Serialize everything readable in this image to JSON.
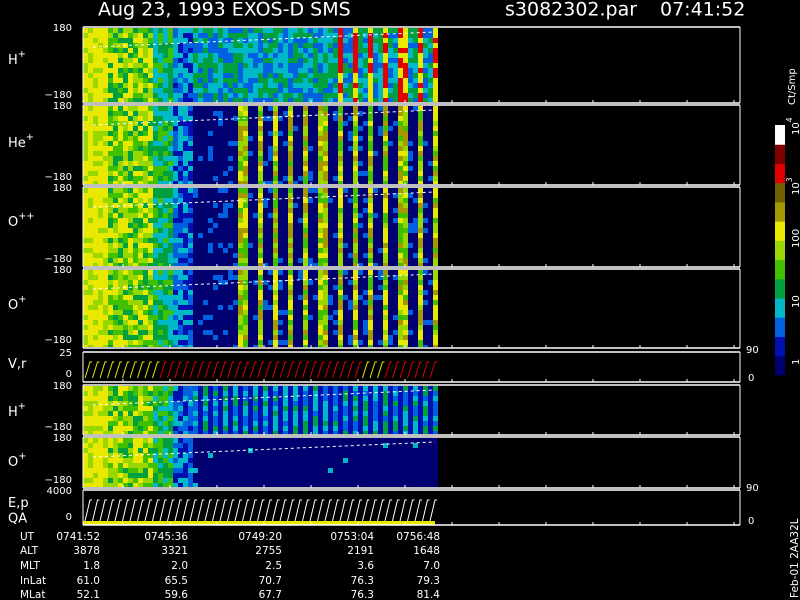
{
  "header": {
    "title": "Aug 23, 1993   EXOS-D SMS",
    "file": "s3082302.par",
    "time": "07:41:52"
  },
  "panels": [
    {
      "label": {
        "base": "H",
        "sup": "+"
      },
      "top": "180",
      "bottom": "−180"
    },
    {
      "label": {
        "base": "He",
        "sup": "+"
      },
      "top": "180",
      "bottom": "−180"
    },
    {
      "label": {
        "base": "O",
        "sup": "++"
      },
      "top": "180",
      "bottom": "−180"
    },
    {
      "label": {
        "base": "O",
        "sup": "+"
      },
      "top": "180",
      "bottom": "−180"
    },
    {
      "label": {
        "base": "V,r"
      },
      "top": "25",
      "bottom": "0",
      "right_top": "90",
      "right_bottom": "0"
    },
    {
      "label": {
        "base": "H",
        "sup": "+"
      },
      "top": "180",
      "bottom": "−180"
    },
    {
      "label": {
        "base": "O",
        "sup": "+"
      },
      "top": "180",
      "bottom": "−180"
    },
    {
      "label": {
        "base": "E,p",
        "second": "QA"
      },
      "top": "4000",
      "bottom": "0",
      "right_top": "90",
      "right_bottom": "0"
    }
  ],
  "colorbar": {
    "unit": "Ct/Smp",
    "labels": [
      {
        "base": "10",
        "sup": "4"
      },
      {
        "base": "10",
        "sup": "3"
      },
      {
        "base": "100"
      },
      {
        "base": "10"
      },
      {
        "base": "1"
      }
    ]
  },
  "table": {
    "rows": [
      [
        "UT",
        "0741:52",
        "0745:36",
        "0749:20",
        "0753:04",
        "0756:48"
      ],
      [
        "ALT",
        "3878",
        "3321",
        "2755",
        "2191",
        "1648"
      ],
      [
        "MLT",
        "1.8",
        "2.0",
        "2.5",
        "3.6",
        "7.0"
      ],
      [
        "InLat",
        "61.0",
        "65.5",
        "70.7",
        "76.3",
        "79.3"
      ],
      [
        "MLat",
        "52.1",
        "59.6",
        "67.7",
        "76.3",
        "81.4"
      ]
    ]
  },
  "footer": "Feb-01 2AA32L"
}
